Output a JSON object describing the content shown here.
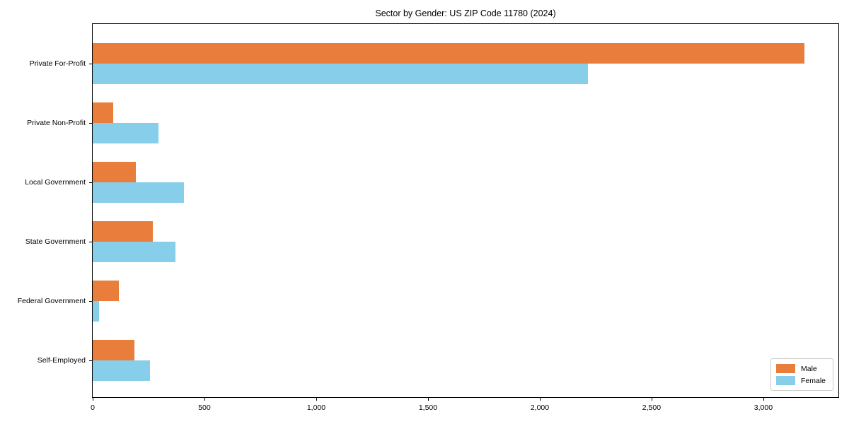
{
  "chart_data": {
    "type": "bar",
    "orientation": "horizontal",
    "title": "Sector by Gender: US ZIP Code 11780 (2024)",
    "categories": [
      "Private For-Profit",
      "Private Non-Profit",
      "Local Government",
      "State Government",
      "Federal Government",
      "Self-Employed"
    ],
    "series": [
      {
        "name": "Male",
        "color": "#E87D3C",
        "values": [
          3183,
          93,
          192,
          270,
          117,
          188
        ]
      },
      {
        "name": "Female",
        "color": "#87CEEB",
        "values": [
          2214,
          294,
          408,
          370,
          28,
          257
        ]
      }
    ],
    "xlabel": "",
    "ylabel": "",
    "xlim": [
      0,
      3342
    ],
    "xticks": [
      {
        "value": 0,
        "label": "0"
      },
      {
        "value": 500,
        "label": "500"
      },
      {
        "value": 1000,
        "label": "1,000"
      },
      {
        "value": 1500,
        "label": "1,500"
      },
      {
        "value": 2000,
        "label": "2,000"
      },
      {
        "value": 2500,
        "label": "2,500"
      },
      {
        "value": 3000,
        "label": "3,000"
      }
    ],
    "grid": false,
    "legend": {
      "position": "lower right"
    },
    "colors": {
      "axis": "#000000",
      "legend_border": "#cccccc",
      "background": "#ffffff"
    }
  }
}
